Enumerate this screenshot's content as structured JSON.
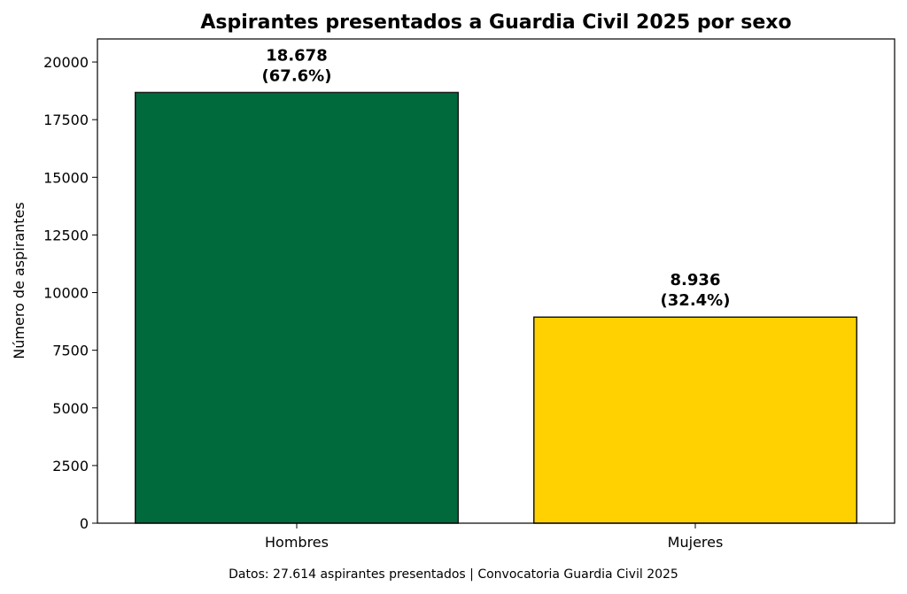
{
  "chart_data": {
    "type": "bar",
    "title": "Aspirantes presentados a Guardia Civil 2025 por sexo",
    "xlabel": "",
    "ylabel": "Número de aspirantes",
    "categories": [
      "Hombres",
      "Mujeres"
    ],
    "values": [
      18678,
      8936
    ],
    "colors": [
      "#006a3d",
      "#ffd100"
    ],
    "edge_color": "#1a1a1a",
    "data_labels": [
      {
        "value": "18.678",
        "percent": "(67.6%)"
      },
      {
        "value": "8.936",
        "percent": "(32.4%)"
      }
    ],
    "ylim": [
      0,
      21000
    ],
    "yticks": [
      0,
      2500,
      5000,
      7500,
      10000,
      12500,
      15000,
      17500,
      20000
    ],
    "grid": false,
    "legend": "none",
    "footnote": "Datos: 27.614 aspirantes presentados | Convocatoria Guardia Civil 2025"
  }
}
